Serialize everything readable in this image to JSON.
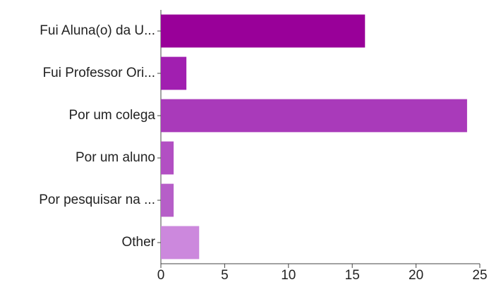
{
  "chart_data": {
    "type": "hbar",
    "categories": [
      "Fui Aluna(o) da U...",
      "Fui Professor Ori...",
      "Por um colega",
      "Por um aluno",
      "Por pesquisar na ...",
      "Other"
    ],
    "values": [
      16,
      2,
      24,
      1,
      1,
      3
    ],
    "colors": [
      "#990099",
      "#a11fb0",
      "#a93aba",
      "#b24fc3",
      "#b65ec8",
      "#cc88dd"
    ],
    "xlim": [
      0,
      25
    ],
    "xticks": [
      0,
      5,
      10,
      15,
      20,
      25
    ]
  }
}
